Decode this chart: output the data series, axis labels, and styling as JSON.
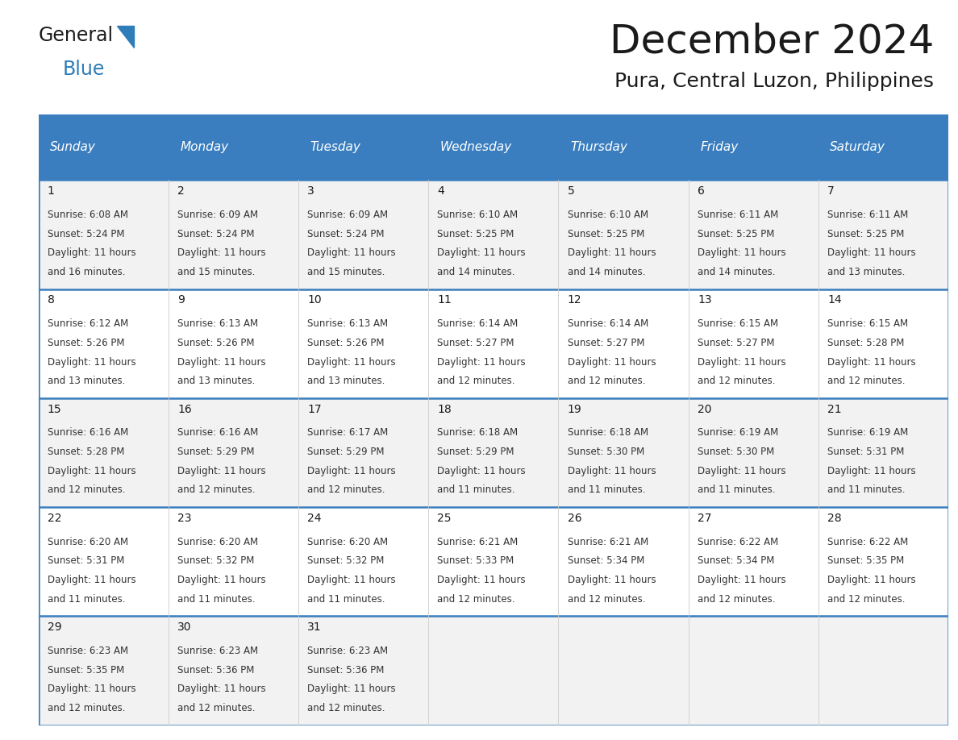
{
  "title": "December 2024",
  "subtitle": "Pura, Central Luzon, Philippines",
  "header_bg_color": "#3a7ebf",
  "header_text_color": "#ffffff",
  "day_names": [
    "Sunday",
    "Monday",
    "Tuesday",
    "Wednesday",
    "Thursday",
    "Friday",
    "Saturday"
  ],
  "row_bg_even": "#f2f2f2",
  "row_bg_odd": "#ffffff",
  "divider_color": "#3a7ebf",
  "title_color": "#1a1a1a",
  "subtitle_color": "#1a1a1a",
  "cell_text_color": "#333333",
  "day_num_color": "#1a1a1a",
  "calendar_data": [
    [
      {
        "day": 1,
        "sunrise": "6:08 AM",
        "sunset": "5:24 PM",
        "daylight_min": "16"
      },
      {
        "day": 2,
        "sunrise": "6:09 AM",
        "sunset": "5:24 PM",
        "daylight_min": "15"
      },
      {
        "day": 3,
        "sunrise": "6:09 AM",
        "sunset": "5:24 PM",
        "daylight_min": "15"
      },
      {
        "day": 4,
        "sunrise": "6:10 AM",
        "sunset": "5:25 PM",
        "daylight_min": "14"
      },
      {
        "day": 5,
        "sunrise": "6:10 AM",
        "sunset": "5:25 PM",
        "daylight_min": "14"
      },
      {
        "day": 6,
        "sunrise": "6:11 AM",
        "sunset": "5:25 PM",
        "daylight_min": "14"
      },
      {
        "day": 7,
        "sunrise": "6:11 AM",
        "sunset": "5:25 PM",
        "daylight_min": "13"
      }
    ],
    [
      {
        "day": 8,
        "sunrise": "6:12 AM",
        "sunset": "5:26 PM",
        "daylight_min": "13"
      },
      {
        "day": 9,
        "sunrise": "6:13 AM",
        "sunset": "5:26 PM",
        "daylight_min": "13"
      },
      {
        "day": 10,
        "sunrise": "6:13 AM",
        "sunset": "5:26 PM",
        "daylight_min": "13"
      },
      {
        "day": 11,
        "sunrise": "6:14 AM",
        "sunset": "5:27 PM",
        "daylight_min": "12"
      },
      {
        "day": 12,
        "sunrise": "6:14 AM",
        "sunset": "5:27 PM",
        "daylight_min": "12"
      },
      {
        "day": 13,
        "sunrise": "6:15 AM",
        "sunset": "5:27 PM",
        "daylight_min": "12"
      },
      {
        "day": 14,
        "sunrise": "6:15 AM",
        "sunset": "5:28 PM",
        "daylight_min": "12"
      }
    ],
    [
      {
        "day": 15,
        "sunrise": "6:16 AM",
        "sunset": "5:28 PM",
        "daylight_min": "12"
      },
      {
        "day": 16,
        "sunrise": "6:16 AM",
        "sunset": "5:29 PM",
        "daylight_min": "12"
      },
      {
        "day": 17,
        "sunrise": "6:17 AM",
        "sunset": "5:29 PM",
        "daylight_min": "12"
      },
      {
        "day": 18,
        "sunrise": "6:18 AM",
        "sunset": "5:29 PM",
        "daylight_min": "11"
      },
      {
        "day": 19,
        "sunrise": "6:18 AM",
        "sunset": "5:30 PM",
        "daylight_min": "11"
      },
      {
        "day": 20,
        "sunrise": "6:19 AM",
        "sunset": "5:30 PM",
        "daylight_min": "11"
      },
      {
        "day": 21,
        "sunrise": "6:19 AM",
        "sunset": "5:31 PM",
        "daylight_min": "11"
      }
    ],
    [
      {
        "day": 22,
        "sunrise": "6:20 AM",
        "sunset": "5:31 PM",
        "daylight_min": "11"
      },
      {
        "day": 23,
        "sunrise": "6:20 AM",
        "sunset": "5:32 PM",
        "daylight_min": "11"
      },
      {
        "day": 24,
        "sunrise": "6:20 AM",
        "sunset": "5:32 PM",
        "daylight_min": "11"
      },
      {
        "day": 25,
        "sunrise": "6:21 AM",
        "sunset": "5:33 PM",
        "daylight_min": "12"
      },
      {
        "day": 26,
        "sunrise": "6:21 AM",
        "sunset": "5:34 PM",
        "daylight_min": "12"
      },
      {
        "day": 27,
        "sunrise": "6:22 AM",
        "sunset": "5:34 PM",
        "daylight_min": "12"
      },
      {
        "day": 28,
        "sunrise": "6:22 AM",
        "sunset": "5:35 PM",
        "daylight_min": "12"
      }
    ],
    [
      {
        "day": 29,
        "sunrise": "6:23 AM",
        "sunset": "5:35 PM",
        "daylight_min": "12"
      },
      {
        "day": 30,
        "sunrise": "6:23 AM",
        "sunset": "5:36 PM",
        "daylight_min": "12"
      },
      {
        "day": 31,
        "sunrise": "6:23 AM",
        "sunset": "5:36 PM",
        "daylight_min": "12"
      },
      null,
      null,
      null,
      null
    ]
  ],
  "logo_general_color": "#1a1a1a",
  "logo_blue_color": "#2e7cb8",
  "header_fontsize": 11,
  "day_num_fontsize": 10,
  "cell_fontsize": 8.5,
  "title_fontsize": 36,
  "subtitle_fontsize": 18
}
